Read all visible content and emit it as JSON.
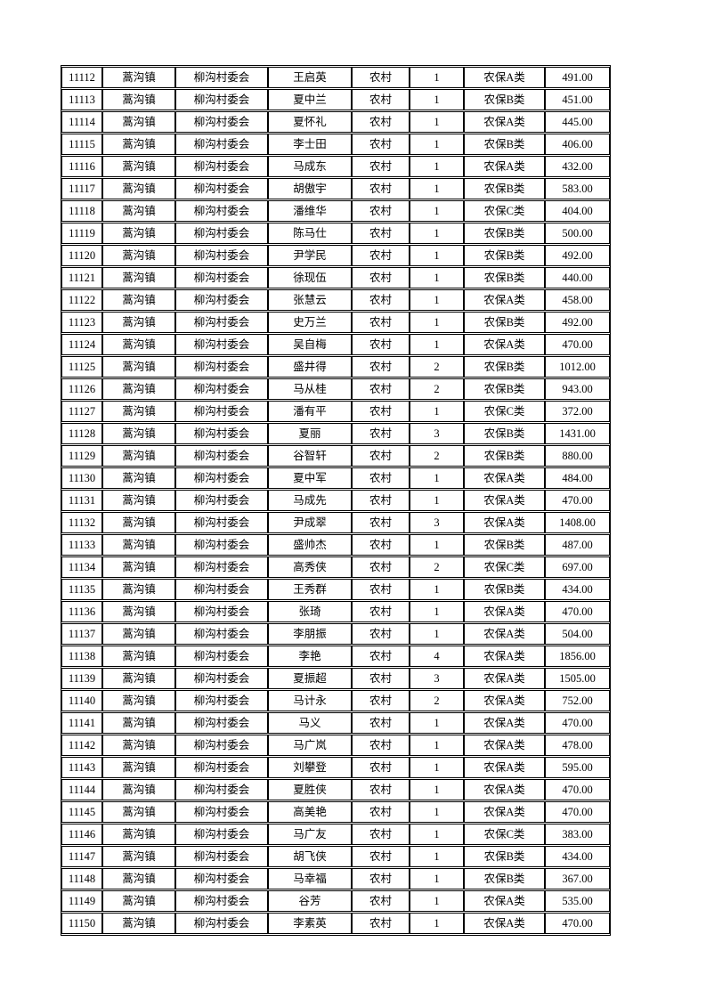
{
  "colors": {
    "background": "#ffffff",
    "text": "#000000",
    "border": "#000000"
  },
  "table": {
    "rows": [
      [
        "11112",
        "蒿沟镇",
        "柳沟村委会",
        "王启英",
        "农村",
        "1",
        "农保A类",
        "491.00"
      ],
      [
        "11113",
        "蒿沟镇",
        "柳沟村委会",
        "夏中兰",
        "农村",
        "1",
        "农保B类",
        "451.00"
      ],
      [
        "11114",
        "蒿沟镇",
        "柳沟村委会",
        "夏怀礼",
        "农村",
        "1",
        "农保A类",
        "445.00"
      ],
      [
        "11115",
        "蒿沟镇",
        "柳沟村委会",
        "李士田",
        "农村",
        "1",
        "农保B类",
        "406.00"
      ],
      [
        "11116",
        "蒿沟镇",
        "柳沟村委会",
        "马成东",
        "农村",
        "1",
        "农保A类",
        "432.00"
      ],
      [
        "11117",
        "蒿沟镇",
        "柳沟村委会",
        "胡傲宇",
        "农村",
        "1",
        "农保B类",
        "583.00"
      ],
      [
        "11118",
        "蒿沟镇",
        "柳沟村委会",
        "潘维华",
        "农村",
        "1",
        "农保C类",
        "404.00"
      ],
      [
        "11119",
        "蒿沟镇",
        "柳沟村委会",
        "陈马仕",
        "农村",
        "1",
        "农保B类",
        "500.00"
      ],
      [
        "11120",
        "蒿沟镇",
        "柳沟村委会",
        "尹学民",
        "农村",
        "1",
        "农保B类",
        "492.00"
      ],
      [
        "11121",
        "蒿沟镇",
        "柳沟村委会",
        "徐现伍",
        "农村",
        "1",
        "农保B类",
        "440.00"
      ],
      [
        "11122",
        "蒿沟镇",
        "柳沟村委会",
        "张慧云",
        "农村",
        "1",
        "农保A类",
        "458.00"
      ],
      [
        "11123",
        "蒿沟镇",
        "柳沟村委会",
        "史万兰",
        "农村",
        "1",
        "农保B类",
        "492.00"
      ],
      [
        "11124",
        "蒿沟镇",
        "柳沟村委会",
        "吴自梅",
        "农村",
        "1",
        "农保A类",
        "470.00"
      ],
      [
        "11125",
        "蒿沟镇",
        "柳沟村委会",
        "盛井得",
        "农村",
        "2",
        "农保B类",
        "1012.00"
      ],
      [
        "11126",
        "蒿沟镇",
        "柳沟村委会",
        "马从桂",
        "农村",
        "2",
        "农保B类",
        "943.00"
      ],
      [
        "11127",
        "蒿沟镇",
        "柳沟村委会",
        "潘有平",
        "农村",
        "1",
        "农保C类",
        "372.00"
      ],
      [
        "11128",
        "蒿沟镇",
        "柳沟村委会",
        "夏丽",
        "农村",
        "3",
        "农保B类",
        "1431.00"
      ],
      [
        "11129",
        "蒿沟镇",
        "柳沟村委会",
        "谷智轩",
        "农村",
        "2",
        "农保B类",
        "880.00"
      ],
      [
        "11130",
        "蒿沟镇",
        "柳沟村委会",
        "夏中军",
        "农村",
        "1",
        "农保A类",
        "484.00"
      ],
      [
        "11131",
        "蒿沟镇",
        "柳沟村委会",
        "马成先",
        "农村",
        "1",
        "农保A类",
        "470.00"
      ],
      [
        "11132",
        "蒿沟镇",
        "柳沟村委会",
        "尹成翠",
        "农村",
        "3",
        "农保A类",
        "1408.00"
      ],
      [
        "11133",
        "蒿沟镇",
        "柳沟村委会",
        "盛帅杰",
        "农村",
        "1",
        "农保B类",
        "487.00"
      ],
      [
        "11134",
        "蒿沟镇",
        "柳沟村委会",
        "高秀侠",
        "农村",
        "2",
        "农保C类",
        "697.00"
      ],
      [
        "11135",
        "蒿沟镇",
        "柳沟村委会",
        "王秀群",
        "农村",
        "1",
        "农保B类",
        "434.00"
      ],
      [
        "11136",
        "蒿沟镇",
        "柳沟村委会",
        "张琦",
        "农村",
        "1",
        "农保A类",
        "470.00"
      ],
      [
        "11137",
        "蒿沟镇",
        "柳沟村委会",
        "李朋振",
        "农村",
        "1",
        "农保A类",
        "504.00"
      ],
      [
        "11138",
        "蒿沟镇",
        "柳沟村委会",
        "李艳",
        "农村",
        "4",
        "农保A类",
        "1856.00"
      ],
      [
        "11139",
        "蒿沟镇",
        "柳沟村委会",
        "夏振超",
        "农村",
        "3",
        "农保A类",
        "1505.00"
      ],
      [
        "11140",
        "蒿沟镇",
        "柳沟村委会",
        "马计永",
        "农村",
        "2",
        "农保A类",
        "752.00"
      ],
      [
        "11141",
        "蒿沟镇",
        "柳沟村委会",
        "马义",
        "农村",
        "1",
        "农保A类",
        "470.00"
      ],
      [
        "11142",
        "蒿沟镇",
        "柳沟村委会",
        "马广岚",
        "农村",
        "1",
        "农保A类",
        "478.00"
      ],
      [
        "11143",
        "蒿沟镇",
        "柳沟村委会",
        "刘攀登",
        "农村",
        "1",
        "农保A类",
        "595.00"
      ],
      [
        "11144",
        "蒿沟镇",
        "柳沟村委会",
        "夏胜侠",
        "农村",
        "1",
        "农保A类",
        "470.00"
      ],
      [
        "11145",
        "蒿沟镇",
        "柳沟村委会",
        "高美艳",
        "农村",
        "1",
        "农保A类",
        "470.00"
      ],
      [
        "11146",
        "蒿沟镇",
        "柳沟村委会",
        "马广友",
        "农村",
        "1",
        "农保C类",
        "383.00"
      ],
      [
        "11147",
        "蒿沟镇",
        "柳沟村委会",
        "胡飞侠",
        "农村",
        "1",
        "农保B类",
        "434.00"
      ],
      [
        "11148",
        "蒿沟镇",
        "柳沟村委会",
        "马幸福",
        "农村",
        "1",
        "农保B类",
        "367.00"
      ],
      [
        "11149",
        "蒿沟镇",
        "柳沟村委会",
        "谷芳",
        "农村",
        "1",
        "农保A类",
        "535.00"
      ],
      [
        "11150",
        "蒿沟镇",
        "柳沟村委会",
        "李素英",
        "农村",
        "1",
        "农保A类",
        "470.00"
      ]
    ]
  }
}
